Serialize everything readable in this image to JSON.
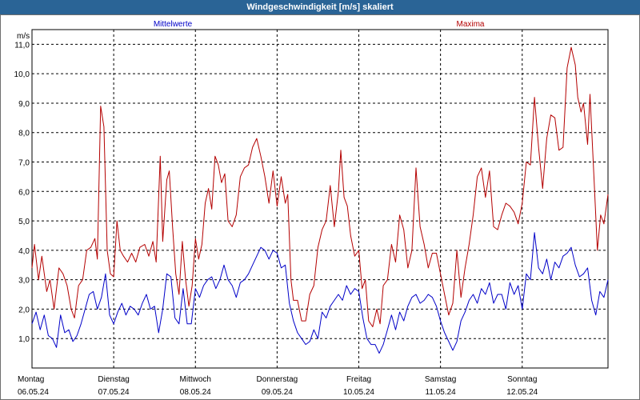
{
  "window": {
    "title": "Windgeschwindigkeit [m/s] skaliert"
  },
  "colors": {
    "titlebar": "#2a6496",
    "series_mean": "#0000c8",
    "series_max": "#b40000",
    "grid": "#000000",
    "plot_border": "#000000"
  },
  "chart_data": {
    "type": "line",
    "title": "Windgeschwindigkeit [m/s] skaliert",
    "ylabel": "m/s",
    "ylim": [
      0,
      11.5
    ],
    "xlim": [
      0,
      7.05
    ],
    "grid": true,
    "legend": "top, inline labels",
    "y_ticks": [
      {
        "value": 1,
        "label": "1,0"
      },
      {
        "value": 2,
        "label": "2,0"
      },
      {
        "value": 3,
        "label": "3,0"
      },
      {
        "value": 4,
        "label": "4,0"
      },
      {
        "value": 5,
        "label": "5,0"
      },
      {
        "value": 6,
        "label": "6,0"
      },
      {
        "value": 7,
        "label": "7,0"
      },
      {
        "value": 8,
        "label": "8,0"
      },
      {
        "value": 9,
        "label": "9,0"
      },
      {
        "value": 10,
        "label": "10,0"
      },
      {
        "value": 11,
        "label": "11,0"
      }
    ],
    "x_ticks": [
      {
        "value": 0,
        "day": "Montag",
        "date": "06.05.24"
      },
      {
        "value": 1,
        "day": "Dienstag",
        "date": "07.05.24"
      },
      {
        "value": 2,
        "day": "Mittwoch",
        "date": "08.05.24"
      },
      {
        "value": 3,
        "day": "Donnerstag",
        "date": "09.05.24"
      },
      {
        "value": 4,
        "day": "Freitag",
        "date": "10.05.24"
      },
      {
        "value": 5,
        "day": "Samstag",
        "date": "11.05.24"
      },
      {
        "value": 6,
        "day": "Sonntag",
        "date": "12.05.24"
      }
    ],
    "series": [
      {
        "name": "Mittelwerte",
        "color": "#0000c8",
        "values": [
          [
            0,
            1.5
          ],
          [
            0.05,
            1.9
          ],
          [
            0.1,
            1.3
          ],
          [
            0.15,
            1.8
          ],
          [
            0.2,
            1.1
          ],
          [
            0.25,
            1.0
          ],
          [
            0.3,
            0.7
          ],
          [
            0.35,
            1.8
          ],
          [
            0.4,
            1.2
          ],
          [
            0.45,
            1.3
          ],
          [
            0.5,
            0.9
          ],
          [
            0.55,
            1.1
          ],
          [
            0.6,
            1.5
          ],
          [
            0.65,
            2.0
          ],
          [
            0.7,
            2.5
          ],
          [
            0.75,
            2.6
          ],
          [
            0.8,
            2.0
          ],
          [
            0.85,
            2.4
          ],
          [
            0.9,
            3.2
          ],
          [
            0.95,
            1.8
          ],
          [
            1.0,
            1.5
          ],
          [
            1.05,
            1.9
          ],
          [
            1.1,
            2.2
          ],
          [
            1.15,
            1.8
          ],
          [
            1.2,
            2.1
          ],
          [
            1.25,
            2.0
          ],
          [
            1.3,
            1.8
          ],
          [
            1.35,
            2.2
          ],
          [
            1.4,
            2.5
          ],
          [
            1.45,
            2.0
          ],
          [
            1.5,
            2.1
          ],
          [
            1.55,
            1.2
          ],
          [
            1.6,
            2.0
          ],
          [
            1.65,
            3.2
          ],
          [
            1.7,
            3.1
          ],
          [
            1.75,
            1.7
          ],
          [
            1.8,
            1.5
          ],
          [
            1.85,
            2.7
          ],
          [
            1.9,
            1.5
          ],
          [
            1.95,
            1.5
          ],
          [
            2.0,
            2.7
          ],
          [
            2.05,
            2.4
          ],
          [
            2.1,
            2.8
          ],
          [
            2.15,
            3.0
          ],
          [
            2.2,
            3.1
          ],
          [
            2.25,
            2.7
          ],
          [
            2.3,
            3.0
          ],
          [
            2.35,
            3.5
          ],
          [
            2.4,
            3.0
          ],
          [
            2.45,
            2.8
          ],
          [
            2.5,
            2.4
          ],
          [
            2.55,
            2.9
          ],
          [
            2.6,
            3.0
          ],
          [
            2.65,
            3.2
          ],
          [
            2.7,
            3.5
          ],
          [
            2.75,
            3.8
          ],
          [
            2.8,
            4.1
          ],
          [
            2.85,
            4.0
          ],
          [
            2.9,
            3.7
          ],
          [
            2.95,
            4.0
          ],
          [
            3.0,
            3.9
          ],
          [
            3.05,
            3.4
          ],
          [
            3.1,
            3.5
          ],
          [
            3.15,
            2.2
          ],
          [
            3.2,
            1.6
          ],
          [
            3.25,
            1.2
          ],
          [
            3.3,
            1.0
          ],
          [
            3.35,
            0.8
          ],
          [
            3.4,
            0.9
          ],
          [
            3.45,
            1.3
          ],
          [
            3.5,
            1.0
          ],
          [
            3.55,
            1.9
          ],
          [
            3.6,
            1.7
          ],
          [
            3.65,
            2.1
          ],
          [
            3.7,
            2.3
          ],
          [
            3.75,
            2.5
          ],
          [
            3.8,
            2.3
          ],
          [
            3.85,
            2.8
          ],
          [
            3.9,
            2.5
          ],
          [
            3.95,
            2.7
          ],
          [
            4.0,
            2.6
          ],
          [
            4.05,
            1.7
          ],
          [
            4.1,
            1.0
          ],
          [
            4.15,
            0.8
          ],
          [
            4.2,
            0.8
          ],
          [
            4.25,
            0.5
          ],
          [
            4.3,
            0.8
          ],
          [
            4.35,
            1.3
          ],
          [
            4.4,
            1.8
          ],
          [
            4.45,
            1.3
          ],
          [
            4.5,
            1.9
          ],
          [
            4.55,
            1.6
          ],
          [
            4.6,
            2.1
          ],
          [
            4.65,
            2.4
          ],
          [
            4.7,
            2.5
          ],
          [
            4.75,
            2.2
          ],
          [
            4.8,
            2.3
          ],
          [
            4.85,
            2.5
          ],
          [
            4.9,
            2.4
          ],
          [
            4.95,
            2.1
          ],
          [
            5.0,
            1.6
          ],
          [
            5.05,
            1.2
          ],
          [
            5.1,
            0.9
          ],
          [
            5.15,
            0.6
          ],
          [
            5.2,
            0.9
          ],
          [
            5.25,
            1.6
          ],
          [
            5.3,
            1.9
          ],
          [
            5.35,
            2.3
          ],
          [
            5.4,
            2.5
          ],
          [
            5.45,
            2.2
          ],
          [
            5.5,
            2.7
          ],
          [
            5.55,
            2.5
          ],
          [
            5.6,
            2.9
          ],
          [
            5.65,
            2.2
          ],
          [
            5.7,
            2.5
          ],
          [
            5.75,
            2.5
          ],
          [
            5.8,
            2.0
          ],
          [
            5.85,
            2.9
          ],
          [
            5.9,
            2.5
          ],
          [
            5.95,
            2.8
          ],
          [
            6.0,
            2.0
          ],
          [
            6.05,
            3.2
          ],
          [
            6.1,
            3.0
          ],
          [
            6.15,
            4.6
          ],
          [
            6.2,
            3.4
          ],
          [
            6.25,
            3.2
          ],
          [
            6.3,
            3.7
          ],
          [
            6.35,
            3.0
          ],
          [
            6.4,
            3.6
          ],
          [
            6.45,
            3.4
          ],
          [
            6.5,
            3.8
          ],
          [
            6.55,
            3.9
          ],
          [
            6.6,
            4.1
          ],
          [
            6.65,
            3.5
          ],
          [
            6.7,
            3.1
          ],
          [
            6.75,
            3.2
          ],
          [
            6.8,
            3.4
          ],
          [
            6.85,
            2.3
          ],
          [
            6.9,
            1.8
          ],
          [
            6.95,
            2.6
          ],
          [
            7.0,
            2.4
          ],
          [
            7.05,
            3.0
          ]
        ]
      },
      {
        "name": "Maxima",
        "color": "#b40000",
        "values": [
          [
            0,
            3.4
          ],
          [
            0.03,
            4.2
          ],
          [
            0.08,
            3.0
          ],
          [
            0.12,
            3.8
          ],
          [
            0.18,
            2.6
          ],
          [
            0.22,
            3.0
          ],
          [
            0.27,
            2.0
          ],
          [
            0.33,
            3.4
          ],
          [
            0.38,
            3.2
          ],
          [
            0.43,
            2.8
          ],
          [
            0.48,
            2.0
          ],
          [
            0.52,
            1.7
          ],
          [
            0.57,
            2.8
          ],
          [
            0.62,
            3.0
          ],
          [
            0.67,
            4.0
          ],
          [
            0.72,
            4.1
          ],
          [
            0.77,
            4.4
          ],
          [
            0.8,
            3.7
          ],
          [
            0.84,
            8.9
          ],
          [
            0.88,
            8.2
          ],
          [
            0.92,
            4.0
          ],
          [
            0.96,
            3.2
          ],
          [
            1.0,
            3.1
          ],
          [
            1.04,
            5.0
          ],
          [
            1.08,
            4.0
          ],
          [
            1.12,
            3.8
          ],
          [
            1.17,
            3.6
          ],
          [
            1.22,
            3.9
          ],
          [
            1.27,
            3.6
          ],
          [
            1.32,
            4.1
          ],
          [
            1.38,
            4.2
          ],
          [
            1.43,
            3.8
          ],
          [
            1.48,
            4.3
          ],
          [
            1.52,
            3.6
          ],
          [
            1.57,
            7.2
          ],
          [
            1.6,
            4.3
          ],
          [
            1.65,
            6.4
          ],
          [
            1.68,
            6.7
          ],
          [
            1.72,
            4.8
          ],
          [
            1.76,
            3.2
          ],
          [
            1.8,
            2.5
          ],
          [
            1.84,
            4.3
          ],
          [
            1.88,
            3.0
          ],
          [
            1.92,
            2.1
          ],
          [
            1.96,
            2.8
          ],
          [
            2.0,
            4.4
          ],
          [
            2.04,
            3.7
          ],
          [
            2.08,
            4.2
          ],
          [
            2.12,
            5.6
          ],
          [
            2.16,
            6.1
          ],
          [
            2.2,
            5.4
          ],
          [
            2.24,
            7.2
          ],
          [
            2.28,
            6.9
          ],
          [
            2.32,
            6.3
          ],
          [
            2.36,
            6.6
          ],
          [
            2.4,
            5.0
          ],
          [
            2.45,
            4.8
          ],
          [
            2.5,
            5.2
          ],
          [
            2.55,
            6.5
          ],
          [
            2.6,
            6.8
          ],
          [
            2.65,
            6.9
          ],
          [
            2.7,
            7.5
          ],
          [
            2.75,
            7.8
          ],
          [
            2.8,
            7.2
          ],
          [
            2.85,
            6.5
          ],
          [
            2.9,
            5.6
          ],
          [
            2.95,
            6.7
          ],
          [
            3.0,
            5.5
          ],
          [
            3.05,
            6.5
          ],
          [
            3.1,
            5.6
          ],
          [
            3.13,
            5.9
          ],
          [
            3.17,
            3.0
          ],
          [
            3.2,
            2.3
          ],
          [
            3.25,
            2.3
          ],
          [
            3.3,
            1.6
          ],
          [
            3.35,
            1.6
          ],
          [
            3.4,
            2.5
          ],
          [
            3.45,
            2.8
          ],
          [
            3.5,
            4.1
          ],
          [
            3.55,
            4.7
          ],
          [
            3.6,
            5.0
          ],
          [
            3.65,
            6.2
          ],
          [
            3.7,
            4.8
          ],
          [
            3.75,
            6.0
          ],
          [
            3.78,
            7.4
          ],
          [
            3.82,
            5.8
          ],
          [
            3.86,
            5.5
          ],
          [
            3.9,
            4.5
          ],
          [
            3.95,
            3.8
          ],
          [
            4.0,
            4.0
          ],
          [
            4.04,
            2.7
          ],
          [
            4.08,
            3.0
          ],
          [
            4.12,
            1.6
          ],
          [
            4.17,
            1.4
          ],
          [
            4.22,
            2.0
          ],
          [
            4.26,
            1.5
          ],
          [
            4.3,
            2.8
          ],
          [
            4.35,
            3.0
          ],
          [
            4.4,
            4.2
          ],
          [
            4.45,
            3.6
          ],
          [
            4.5,
            5.2
          ],
          [
            4.55,
            4.7
          ],
          [
            4.6,
            3.4
          ],
          [
            4.65,
            4.0
          ],
          [
            4.7,
            6.8
          ],
          [
            4.75,
            4.8
          ],
          [
            4.8,
            4.2
          ],
          [
            4.85,
            3.4
          ],
          [
            4.9,
            3.9
          ],
          [
            4.95,
            3.9
          ],
          [
            5.0,
            3.2
          ],
          [
            5.05,
            2.5
          ],
          [
            5.1,
            1.8
          ],
          [
            5.15,
            2.2
          ],
          [
            5.2,
            4.0
          ],
          [
            5.25,
            2.4
          ],
          [
            5.3,
            3.4
          ],
          [
            5.35,
            4.2
          ],
          [
            5.4,
            5.2
          ],
          [
            5.45,
            6.5
          ],
          [
            5.5,
            6.8
          ],
          [
            5.55,
            5.8
          ],
          [
            5.6,
            6.7
          ],
          [
            5.65,
            4.8
          ],
          [
            5.7,
            4.7
          ],
          [
            5.75,
            5.2
          ],
          [
            5.8,
            5.6
          ],
          [
            5.85,
            5.5
          ],
          [
            5.9,
            5.3
          ],
          [
            5.95,
            4.9
          ],
          [
            6.0,
            5.6
          ],
          [
            6.05,
            7.0
          ],
          [
            6.1,
            6.9
          ],
          [
            6.15,
            9.2
          ],
          [
            6.2,
            7.5
          ],
          [
            6.25,
            6.1
          ],
          [
            6.3,
            7.8
          ],
          [
            6.35,
            8.6
          ],
          [
            6.4,
            8.5
          ],
          [
            6.45,
            7.4
          ],
          [
            6.5,
            7.5
          ],
          [
            6.55,
            10.2
          ],
          [
            6.6,
            10.9
          ],
          [
            6.65,
            10.3
          ],
          [
            6.68,
            9.2
          ],
          [
            6.72,
            8.7
          ],
          [
            6.75,
            9.0
          ],
          [
            6.8,
            7.6
          ],
          [
            6.83,
            9.3
          ],
          [
            6.88,
            6.4
          ],
          [
            6.92,
            4.0
          ],
          [
            6.96,
            5.2
          ],
          [
            7.0,
            4.9
          ],
          [
            7.05,
            5.9
          ]
        ]
      }
    ]
  }
}
